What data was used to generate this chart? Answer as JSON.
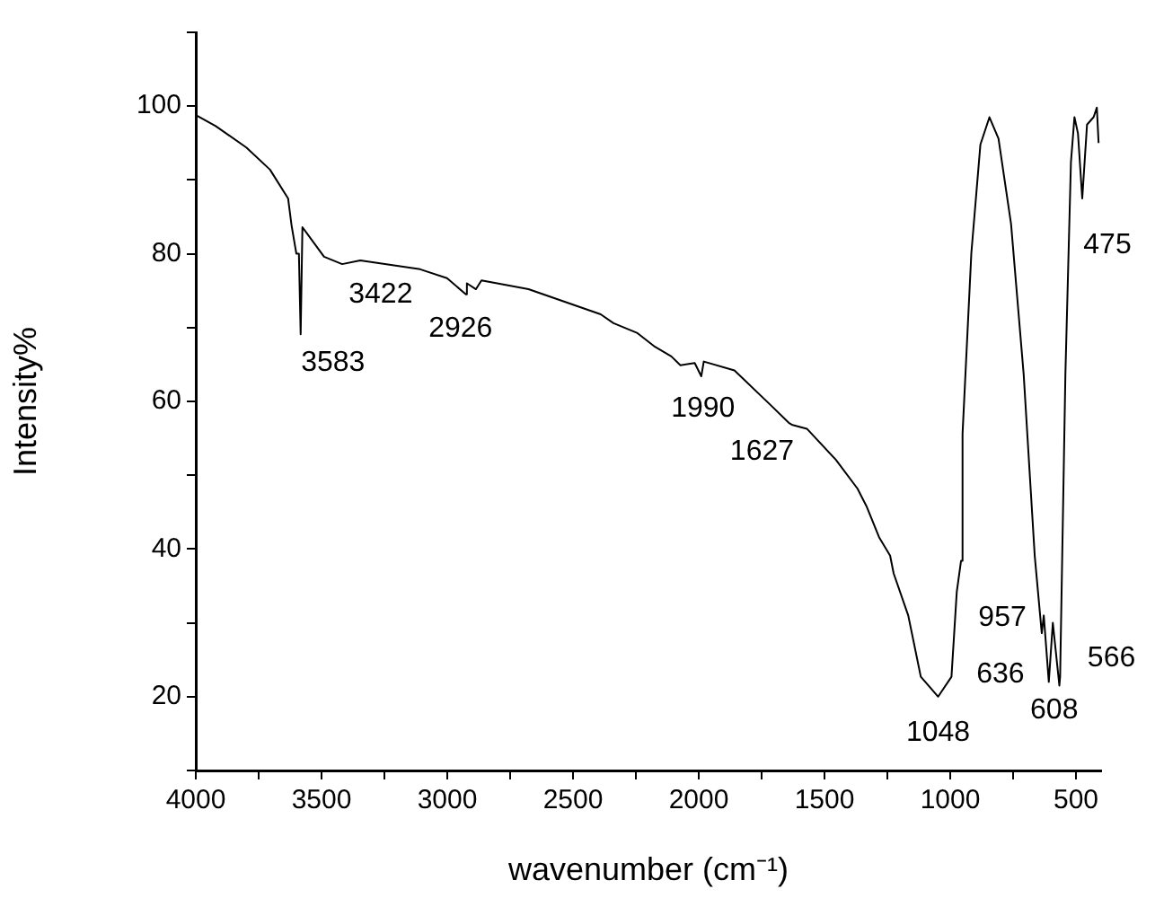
{
  "chart_data": {
    "type": "line",
    "xlabel": "wavenumber (cm⁻¹)",
    "ylabel": "Intensity%",
    "x": [
      4000,
      3921,
      3799,
      3705,
      3633,
      3619,
      3600,
      3590,
      3583,
      3576,
      3490,
      3418,
      3346,
      3108,
      3001,
      2926,
      2922,
      2886,
      2864,
      2677,
      2390,
      2339,
      2246,
      2174,
      2109,
      2073,
      2016,
      1990,
      1980,
      1858,
      1714,
      1642,
      1627,
      1570,
      1455,
      1369,
      1333,
      1283,
      1239,
      1225,
      1167,
      1117,
      1048,
      995,
      974,
      957,
      951,
      916,
      880,
      844,
      808,
      758,
      708,
      664,
      636,
      628,
      608,
      592,
      566,
      563,
      542,
      520,
      506,
      492,
      475,
      456,
      430,
      417,
      410
    ],
    "series": [
      {
        "color": "#000000",
        "values": [
          98.8,
          97.3,
          94.4,
          91.4,
          87.5,
          83.8,
          80,
          80,
          69.1,
          83.6,
          79.6,
          78.6,
          79.1,
          77.9,
          76.7,
          74.5,
          76,
          75.2,
          76.4,
          75.2,
          71.8,
          70.6,
          69.3,
          67.4,
          66.1,
          64.9,
          65.2,
          63.4,
          65.4,
          64.2,
          59.5,
          57.1,
          56.8,
          56.3,
          52.1,
          48.2,
          45.8,
          41.6,
          39.1,
          36.7,
          31,
          22.7,
          20,
          22.7,
          34.2,
          38.4,
          55.6,
          80.1,
          94.8,
          98.5,
          95.6,
          84,
          63.7,
          39.1,
          28.6,
          31,
          22,
          30,
          21.5,
          22.7,
          63.7,
          92.4,
          98.5,
          96.3,
          87.5,
          97.5,
          98.5,
          99.8,
          95
        ]
      }
    ],
    "xlim": [
      4000,
      400
    ],
    "ylim": [
      10,
      110
    ],
    "xticks": [
      4000,
      {
        "value": 3750,
        "label": null
      },
      3500,
      {
        "value": 3250,
        "label": null
      },
      3000,
      {
        "value": 2750,
        "label": null
      },
      2500,
      {
        "value": 2250,
        "label": null
      },
      2000,
      {
        "value": 1750,
        "label": null
      },
      1500,
      {
        "value": 1250,
        "label": null
      },
      1000,
      {
        "value": 750,
        "label": null
      },
      500
    ],
    "yticks": [
      {
        "value": 10,
        "label": null
      },
      20,
      {
        "value": 30,
        "label": null
      },
      40,
      {
        "value": 50,
        "label": null
      },
      60,
      {
        "value": 70,
        "label": null
      },
      80,
      {
        "value": 90,
        "label": null
      },
      100,
      {
        "value": 110,
        "label": null
      }
    ],
    "grid": false,
    "legend": false,
    "marker": "none",
    "line_style": "solid",
    "annotations": [
      {
        "text": "3583",
        "x": 3583,
        "y": 69.1
      },
      {
        "text": "3422",
        "x": 3422,
        "y": 78.6
      },
      {
        "text": "2926",
        "x": 2926,
        "y": 74.5
      },
      {
        "text": "1990",
        "x": 1990,
        "y": 63.4
      },
      {
        "text": "1627",
        "x": 1627,
        "y": 56.8
      },
      {
        "text": "1048",
        "x": 1048,
        "y": 20
      },
      {
        "text": "957",
        "x": 957,
        "y": 38.4
      },
      {
        "text": "636",
        "x": 636,
        "y": 28.6
      },
      {
        "text": "608",
        "x": 608,
        "y": 22
      },
      {
        "text": "566",
        "x": 566,
        "y": 21.5
      },
      {
        "text": "475",
        "x": 475,
        "y": 87.5
      }
    ]
  }
}
